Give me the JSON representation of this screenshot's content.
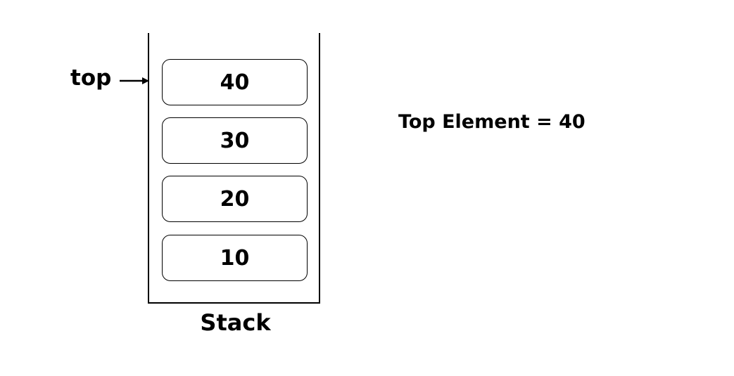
{
  "stack": {
    "label": "Stack",
    "items": [
      "40",
      "30",
      "20",
      "10"
    ]
  },
  "pointer": {
    "label": "top"
  },
  "result": {
    "text": "Top Element = 40"
  }
}
